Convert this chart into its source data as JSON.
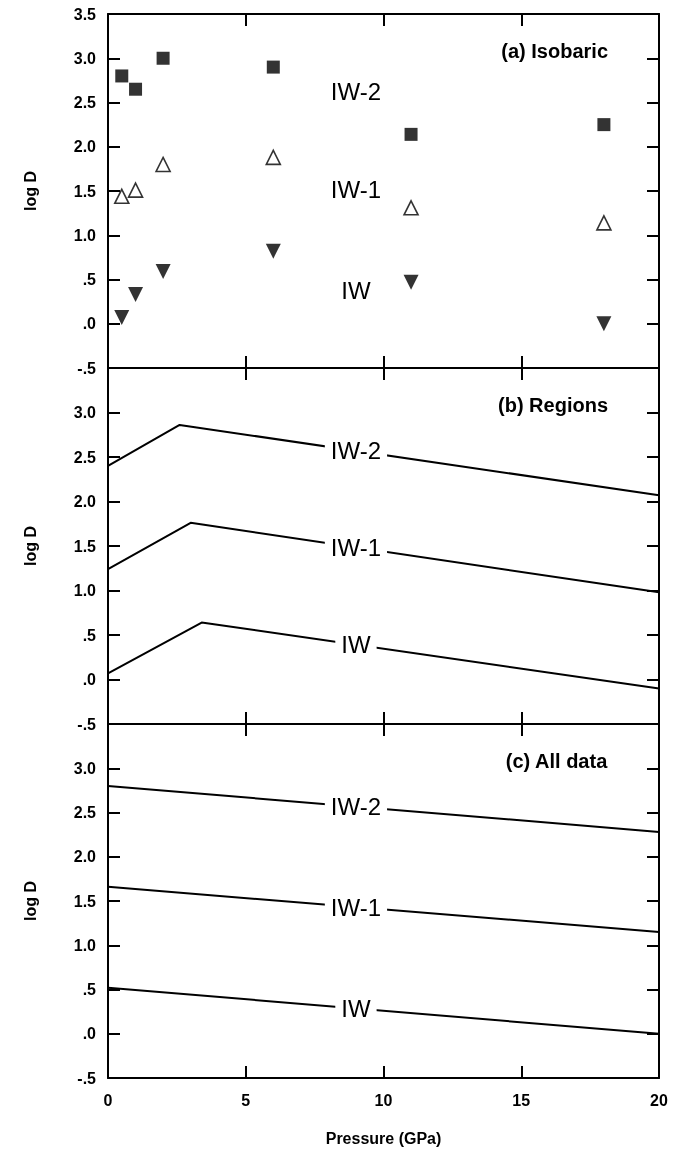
{
  "chart_data": [
    {
      "type": "scatter",
      "title": "(a) Isobaric",
      "ylabel": "log D",
      "tick_labels": "y",
      "xlim": [
        0,
        20
      ],
      "xticks": [
        0,
        5,
        10,
        15,
        20
      ],
      "ylim": [
        -0.5,
        3.5
      ],
      "yticks": [
        {
          "value": 3.5,
          "label": "3.5"
        },
        {
          "value": 3.0,
          "label": "3.0"
        },
        {
          "value": 2.5,
          "label": "2.5"
        },
        {
          "value": 2.0,
          "label": "2.0"
        },
        {
          "value": 1.5,
          "label": "1.5"
        },
        {
          "value": 1.0,
          "label": "1.0"
        },
        {
          "value": 0.5,
          "label": ".5"
        },
        {
          "value": 0,
          "label": ".0"
        },
        {
          "value": -0.5,
          "label": "-.5"
        }
      ],
      "x": [
        0.5,
        1,
        2,
        6,
        11,
        18
      ],
      "series": [
        {
          "name": "IW-2",
          "color": "#000000",
          "marker": "square",
          "values": [
            2.8,
            2.65,
            3.0,
            2.9,
            2.14,
            2.25
          ]
        },
        {
          "name": "IW-1",
          "color": "#000000",
          "marker": "triangle-open",
          "values": [
            1.44,
            1.51,
            1.8,
            1.88,
            1.31,
            1.14
          ]
        },
        {
          "name": "IW",
          "color": "#000000",
          "marker": "triangle-down",
          "values": [
            0.07,
            0.33,
            0.59,
            0.82,
            0.47,
            0.0
          ]
        }
      ]
    },
    {
      "type": "line",
      "title": "(b) Regions",
      "ylabel": "log D",
      "tick_labels": "y",
      "line_style": "solid",
      "marker": "none",
      "xlim": [
        0,
        20
      ],
      "xticks": [
        0,
        5,
        10,
        15,
        20
      ],
      "ylim": [
        -0.5,
        3.5
      ],
      "yticks": [
        {
          "value": 3.5,
          "label": null
        },
        {
          "value": 3.0,
          "label": "3.0"
        },
        {
          "value": 2.5,
          "label": "2.5"
        },
        {
          "value": 2.0,
          "label": "2.0"
        },
        {
          "value": 1.5,
          "label": "1.5"
        },
        {
          "value": 1.0,
          "label": "1.0"
        },
        {
          "value": 0.5,
          "label": ".5"
        },
        {
          "value": 0,
          "label": ".0"
        },
        {
          "value": -0.5,
          "label": "-.5"
        }
      ],
      "series": [
        {
          "name": "IW-2",
          "color": "#000000",
          "x": [
            0,
            2.6,
            20
          ],
          "values": [
            2.4,
            2.86,
            2.07
          ]
        },
        {
          "name": "IW-1",
          "color": "#000000",
          "x": [
            0,
            3.0,
            20
          ],
          "values": [
            1.24,
            1.76,
            0.98
          ]
        },
        {
          "name": "IW",
          "color": "#000000",
          "x": [
            0,
            3.4,
            20
          ],
          "values": [
            0.07,
            0.64,
            -0.1
          ]
        }
      ]
    },
    {
      "type": "line",
      "title": "(c) All data",
      "ylabel": "log D",
      "xlabel": "Pressure (GPa)",
      "line_style": "solid",
      "marker": "none",
      "xlim": [
        0,
        20
      ],
      "xticks": [
        0,
        5,
        10,
        15,
        20
      ],
      "ylim": [
        -0.5,
        3.5
      ],
      "yticks": [
        {
          "value": 3.5,
          "label": null
        },
        {
          "value": 3.0,
          "label": "3.0"
        },
        {
          "value": 2.5,
          "label": "2.5"
        },
        {
          "value": 2.0,
          "label": "2.0"
        },
        {
          "value": 1.5,
          "label": "1.5"
        },
        {
          "value": 1.0,
          "label": "1.0"
        },
        {
          "value": 0.5,
          "label": ".5"
        },
        {
          "value": 0,
          "label": ".0"
        },
        {
          "value": -0.5,
          "label": "-.5"
        }
      ],
      "series": [
        {
          "name": "IW-2",
          "color": "#000000",
          "x": [
            0,
            20
          ],
          "values": [
            2.8,
            2.28
          ]
        },
        {
          "name": "IW-1",
          "color": "#000000",
          "x": [
            0,
            20
          ],
          "values": [
            1.66,
            1.15
          ]
        },
        {
          "name": "IW",
          "color": "#000000",
          "x": [
            0,
            20
          ],
          "values": [
            0.52,
            0.0
          ]
        }
      ]
    }
  ]
}
